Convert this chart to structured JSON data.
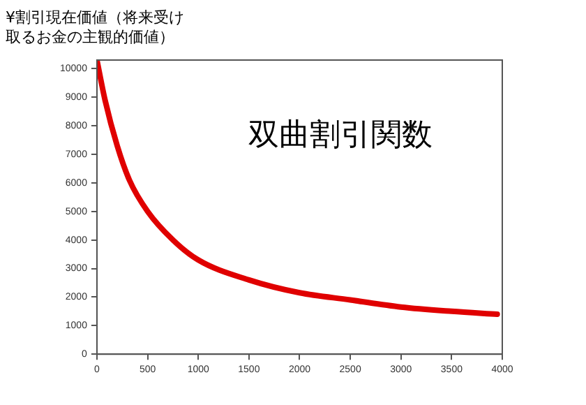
{
  "chart_data": {
    "type": "line",
    "ylabel": "¥割引現在価値（将来受け取るお金の主観的価値）",
    "annotations": [
      "双曲割引関数"
    ],
    "x": [
      0,
      80,
      200,
      320,
      500,
      750,
      1000,
      1500,
      2000,
      2500,
      3000,
      3500,
      3950
    ],
    "series": [
      {
        "color": "#e00000",
        "values": [
          10300,
          8900,
          7300,
          6100,
          5000,
          4000,
          3300,
          2600,
          2150,
          1900,
          1650,
          1500,
          1400
        ]
      }
    ],
    "xlim": [
      0,
      4000
    ],
    "xticks": [
      0,
      500,
      1000,
      1500,
      2000,
      2500,
      3000,
      3500,
      4000
    ],
    "ylim": [
      0,
      10300
    ],
    "yticks": [
      0,
      1000,
      2000,
      3000,
      4000,
      5000,
      6000,
      7000,
      8000,
      9000,
      10000
    ],
    "grid": false,
    "legend": false,
    "marker": "none",
    "line_style": "solid"
  }
}
